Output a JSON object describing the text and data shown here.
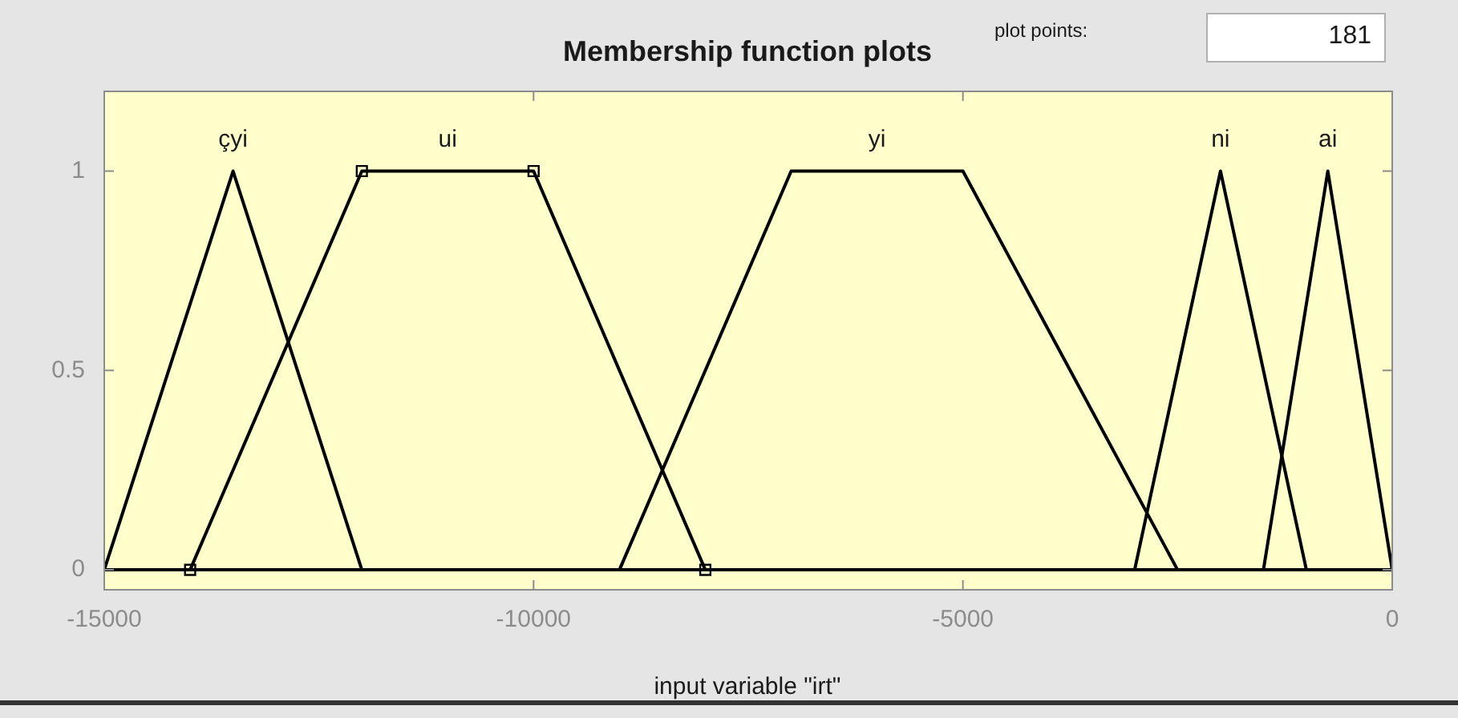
{
  "chart_data": {
    "type": "line",
    "title": "Membership function plots",
    "xlabel": "input variable \"irt\"",
    "annotations": [
      "plot points:",
      "181"
    ],
    "xlim": [
      -15000,
      0
    ],
    "xticks": [
      -15000,
      -10000,
      -5000,
      0
    ],
    "ylim": [
      -0.05,
      1.2
    ],
    "yticks": [
      0,
      0.5,
      1
    ],
    "grid": false,
    "legend": false,
    "marker": "none",
    "line_style": "solid",
    "series": [
      {
        "name": "çyi",
        "color": "#000000",
        "x": [
          -15000,
          -13500,
          -12000,
          0
        ],
        "values": [
          0,
          1,
          0,
          0
        ]
      },
      {
        "name": "ui",
        "color": "#000000",
        "marker": "square",
        "x": [
          -14000,
          -12000,
          -10000,
          -8000
        ],
        "values": [
          0,
          1,
          1,
          0
        ]
      },
      {
        "name": "yi",
        "color": "#000000",
        "x": [
          -15000,
          -9000,
          -7000,
          -5000,
          -2500,
          0
        ],
        "values": [
          0,
          0,
          1,
          1,
          0,
          0
        ]
      },
      {
        "name": "ni",
        "color": "#000000",
        "x": [
          -15000,
          -3000,
          -2000,
          -1000,
          0
        ],
        "values": [
          0,
          0,
          1,
          0,
          0
        ]
      },
      {
        "name": "ai",
        "color": "#000000",
        "x": [
          -15000,
          -1500,
          -750,
          0
        ],
        "values": [
          0,
          0,
          1,
          0
        ]
      }
    ]
  }
}
